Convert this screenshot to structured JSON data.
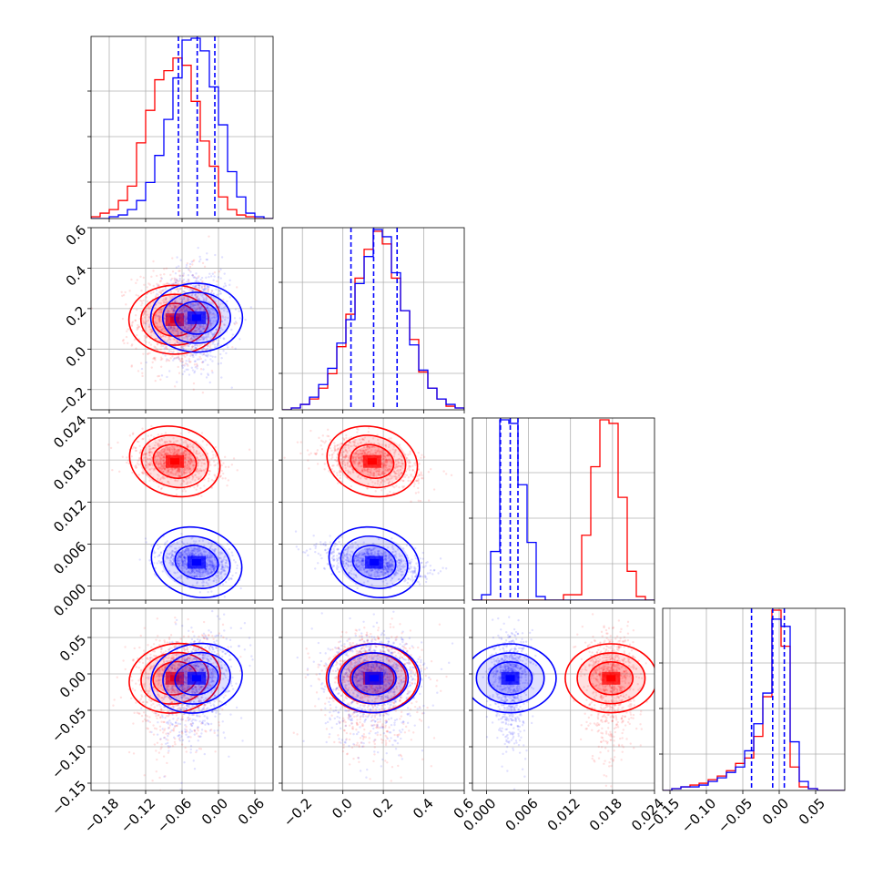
{
  "chart_data": {
    "type": "corner",
    "title": "",
    "series": [
      {
        "color": "#ff0000"
      },
      {
        "color": "#0000ff"
      }
    ],
    "parameters": [
      {
        "range": [
          -0.21,
          0.09
        ],
        "ticks": [
          "−0.18",
          "−0.12",
          "−0.06",
          "0.00",
          "0.06"
        ],
        "tick_values": [
          -0.18,
          -0.12,
          -0.06,
          0.0,
          0.06
        ]
      },
      {
        "range": [
          -0.3,
          0.6
        ],
        "ticks": [
          "−0.2",
          "0.0",
          "0.2",
          "0.4",
          "0.6"
        ],
        "tick_values": [
          -0.2,
          0.0,
          0.2,
          0.4,
          0.6
        ]
      },
      {
        "range": [
          -0.002,
          0.024
        ],
        "ticks": [
          "0.000",
          "0.006",
          "0.012",
          "0.018",
          "0.024"
        ],
        "tick_values": [
          0.0,
          0.006,
          0.012,
          0.018,
          0.024
        ]
      },
      {
        "range": [
          -0.16,
          0.09
        ],
        "ticks": [
          "−0.15",
          "−0.10",
          "−0.05",
          "0.00",
          "0.05"
        ],
        "tick_values": [
          -0.15,
          -0.1,
          -0.05,
          0.0,
          0.05
        ]
      }
    ],
    "quantile_lines_blue": [
      [
        -0.066,
        -0.035,
        -0.006
      ],
      [
        0.04,
        0.152,
        0.268
      ],
      [
        0.002,
        0.0034,
        0.0045
      ],
      [
        -0.038,
        -0.009,
        0.007
      ]
    ],
    "histograms": [
      {
        "bins": [
          -0.21,
          -0.195,
          -0.18,
          -0.165,
          -0.15,
          -0.135,
          -0.12,
          -0.105,
          -0.09,
          -0.075,
          -0.06,
          -0.045,
          -0.03,
          -0.015,
          0.0,
          0.015,
          0.03,
          0.045,
          0.06,
          0.075,
          0.09
        ],
        "red": [
          0.01,
          0.03,
          0.05,
          0.1,
          0.18,
          0.42,
          0.6,
          0.77,
          0.82,
          0.89,
          0.85,
          0.65,
          0.43,
          0.29,
          0.12,
          0.05,
          0.02,
          0.01,
          0.0,
          0.0
        ],
        "blue": [
          0.0,
          0.0,
          0.01,
          0.02,
          0.05,
          0.1,
          0.2,
          0.35,
          0.55,
          0.78,
          0.99,
          1.0,
          0.93,
          0.73,
          0.52,
          0.26,
          0.12,
          0.03,
          0.01,
          0.0
        ]
      },
      {
        "bins": [
          -0.3,
          -0.255,
          -0.21,
          -0.165,
          -0.12,
          -0.075,
          -0.03,
          0.015,
          0.06,
          0.105,
          0.15,
          0.195,
          0.24,
          0.285,
          0.33,
          0.375,
          0.42,
          0.465,
          0.51,
          0.555,
          0.6
        ],
        "red": [
          0.0,
          0.01,
          0.03,
          0.06,
          0.12,
          0.2,
          0.35,
          0.53,
          0.73,
          0.89,
          0.99,
          0.92,
          0.73,
          0.55,
          0.39,
          0.21,
          0.12,
          0.06,
          0.02,
          0.01
        ],
        "blue": [
          0.0,
          0.01,
          0.03,
          0.07,
          0.14,
          0.23,
          0.37,
          0.5,
          0.7,
          0.85,
          1.0,
          0.96,
          0.76,
          0.55,
          0.36,
          0.22,
          0.12,
          0.06,
          0.03,
          0.01
        ]
      },
      {
        "bins": [
          -0.002,
          -0.0007,
          0.0006,
          0.0019,
          0.0032,
          0.0045,
          0.0058,
          0.0071,
          0.0084,
          0.0097,
          0.011,
          0.0123,
          0.0136,
          0.0149,
          0.0162,
          0.0175,
          0.0188,
          0.0201,
          0.0214,
          0.0227,
          0.024
        ],
        "red": [
          0.0,
          0.0,
          0.0,
          0.0,
          0.0,
          0.0,
          0.0,
          0.0,
          0.0,
          0.0,
          0.03,
          0.03,
          0.36,
          0.74,
          1.0,
          0.98,
          0.57,
          0.16,
          0.02,
          0.0
        ],
        "blue": [
          0.0,
          0.03,
          0.27,
          1.0,
          0.98,
          0.64,
          0.32,
          0.02,
          0.0,
          0.0,
          0.0,
          0.0,
          0.0,
          0.0,
          0.0,
          0.0,
          0.0,
          0.0,
          0.0,
          0.0
        ]
      },
      {
        "bins": [
          -0.16,
          -0.1475,
          -0.135,
          -0.1225,
          -0.11,
          -0.0975,
          -0.085,
          -0.0725,
          -0.06,
          -0.0475,
          -0.035,
          -0.0225,
          -0.01,
          0.0025,
          0.015,
          0.0275,
          0.04,
          0.0525,
          0.065,
          0.0775,
          0.09
        ],
        "red": [
          0.0,
          0.01,
          0.02,
          0.03,
          0.04,
          0.06,
          0.08,
          0.11,
          0.15,
          0.18,
          0.3,
          0.52,
          1.0,
          0.8,
          0.13,
          0.02,
          0.01,
          0.0,
          0.0,
          0.0
        ],
        "blue": [
          0.0,
          0.01,
          0.02,
          0.02,
          0.03,
          0.05,
          0.07,
          0.1,
          0.13,
          0.22,
          0.37,
          0.54,
          0.95,
          0.91,
          0.27,
          0.05,
          0.01,
          0.0,
          0.0,
          0.0
        ]
      }
    ],
    "distributions": [
      {
        "red": {
          "mean": [
            -0.072,
            0.145,
            0.0178,
            -0.006
          ],
          "sd": [
            0.034,
            0.12,
            0.0017,
            0.03
          ]
        },
        "blue": {
          "mean": [
            -0.036,
            0.155,
            0.0034,
            -0.006
          ],
          "sd": [
            0.028,
            0.12,
            0.0013,
            0.028
          ]
        }
      }
    ]
  }
}
